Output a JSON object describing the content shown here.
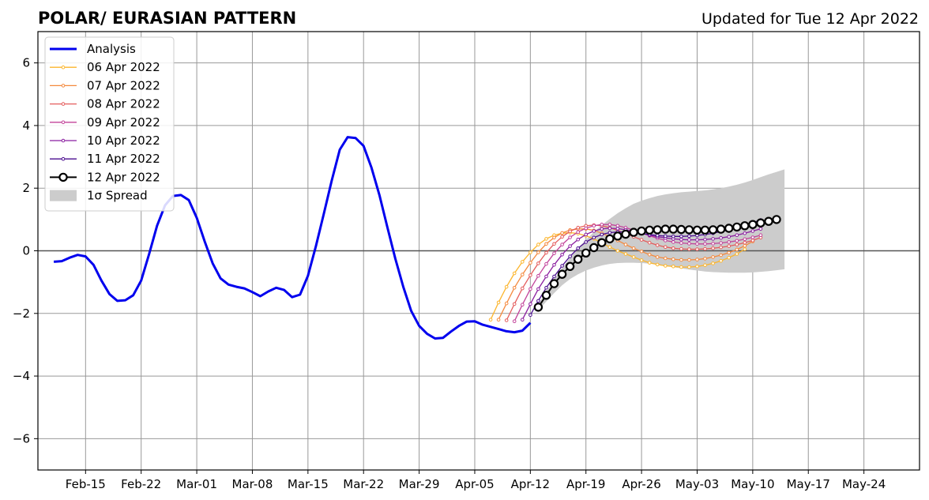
{
  "chart_data": {
    "type": "line",
    "title": "POLAR/ EURASIAN  PATTERN",
    "subtitle": "Updated for Tue 12 Apr 2022",
    "xlabel": "",
    "ylabel": "",
    "xlim": [
      "2022-02-09",
      "2022-05-31"
    ],
    "ylim": [
      -7,
      7
    ],
    "x_tick_labels": [
      "Feb-15",
      "Feb-22",
      "Mar-01",
      "Mar-08",
      "Mar-15",
      "Mar-22",
      "Mar-29",
      "Apr-05",
      "Apr-12",
      "Apr-19",
      "Apr-26",
      "May-03",
      "May-10",
      "May-17",
      "May-24"
    ],
    "x_tick_dates": [
      "2022-02-15",
      "2022-02-22",
      "2022-03-01",
      "2022-03-08",
      "2022-03-15",
      "2022-03-22",
      "2022-03-29",
      "2022-04-05",
      "2022-04-12",
      "2022-04-19",
      "2022-04-26",
      "2022-05-03",
      "2022-05-10",
      "2022-05-17",
      "2022-05-24"
    ],
    "y_ticks": [
      -6,
      -4,
      -2,
      0,
      2,
      4,
      6
    ],
    "y_tick_labels": [
      "−6",
      "−4",
      "−2",
      "0",
      "2",
      "4",
      "6"
    ],
    "grid": true,
    "legend_position": "top-left",
    "series": [
      {
        "name": "Analysis",
        "color": "#0000ee",
        "start": "2022-02-11",
        "values": [
          -0.35,
          -0.33,
          -0.22,
          -0.13,
          -0.18,
          -0.45,
          -0.95,
          -1.38,
          -1.6,
          -1.58,
          -1.42,
          -0.95,
          -0.1,
          0.8,
          1.45,
          1.75,
          1.78,
          1.62,
          1.05,
          0.3,
          -0.4,
          -0.88,
          -1.08,
          -1.15,
          -1.2,
          -1.32,
          -1.45,
          -1.3,
          -1.18,
          -1.25,
          -1.48,
          -1.4,
          -0.8,
          0.15,
          1.18,
          2.25,
          3.23,
          3.63,
          3.6,
          3.35,
          2.65,
          1.78,
          0.75,
          -0.25,
          -1.15,
          -1.92,
          -2.4,
          -2.65,
          -2.8,
          -2.78,
          -2.58,
          -2.4,
          -2.26,
          -2.25,
          -2.36,
          -2.43,
          -2.5,
          -2.57,
          -2.6,
          -2.55,
          -2.3
        ]
      },
      {
        "name": "06 Apr 2022",
        "color": "#fcb52b",
        "start": "2022-04-07",
        "values": [
          -2.2,
          -1.65,
          -1.15,
          -0.72,
          -0.35,
          -0.05,
          0.2,
          0.38,
          0.5,
          0.56,
          0.58,
          0.55,
          0.48,
          0.38,
          0.25,
          0.12,
          0.0,
          -0.1,
          -0.2,
          -0.3,
          -0.38,
          -0.44,
          -0.48,
          -0.5,
          -0.52,
          -0.52,
          -0.5,
          -0.46,
          -0.4,
          -0.32,
          -0.22,
          -0.1,
          0.05
        ]
      },
      {
        "name": "07 Apr 2022",
        "color": "#f4893d",
        "start": "2022-04-08",
        "values": [
          -2.2,
          -1.68,
          -1.18,
          -0.76,
          -0.38,
          -0.05,
          0.22,
          0.42,
          0.57,
          0.66,
          0.7,
          0.7,
          0.65,
          0.56,
          0.45,
          0.33,
          0.2,
          0.08,
          -0.02,
          -0.12,
          -0.2,
          -0.24,
          -0.27,
          -0.29,
          -0.29,
          -0.28,
          -0.25,
          -0.2,
          -0.14,
          -0.06,
          0.04,
          0.16,
          0.3
        ]
      },
      {
        "name": "08 Apr 2022",
        "color": "#e45c5c",
        "start": "2022-04-09",
        "values": [
          -2.22,
          -1.7,
          -1.2,
          -0.78,
          -0.4,
          -0.06,
          0.22,
          0.45,
          0.62,
          0.74,
          0.8,
          0.82,
          0.8,
          0.74,
          0.65,
          0.55,
          0.45,
          0.35,
          0.26,
          0.18,
          0.12,
          0.08,
          0.06,
          0.05,
          0.05,
          0.06,
          0.08,
          0.11,
          0.15,
          0.2,
          0.26,
          0.33,
          0.42
        ]
      },
      {
        "name": "09 Apr 2022",
        "color": "#c2439a",
        "start": "2022-04-10",
        "values": [
          -2.25,
          -1.72,
          -1.22,
          -0.8,
          -0.42,
          -0.08,
          0.2,
          0.43,
          0.6,
          0.72,
          0.8,
          0.84,
          0.84,
          0.8,
          0.74,
          0.66,
          0.57,
          0.48,
          0.4,
          0.33,
          0.28,
          0.25,
          0.23,
          0.22,
          0.22,
          0.23,
          0.25,
          0.28,
          0.32,
          0.37,
          0.43,
          0.5
        ]
      },
      {
        "name": "10 Apr 2022",
        "color": "#8b1fa0",
        "start": "2022-04-11",
        "values": [
          -2.2,
          -1.7,
          -1.22,
          -0.82,
          -0.45,
          -0.12,
          0.15,
          0.36,
          0.52,
          0.63,
          0.7,
          0.72,
          0.71,
          0.67,
          0.62,
          0.56,
          0.5,
          0.45,
          0.41,
          0.38,
          0.36,
          0.35,
          0.35,
          0.36,
          0.38,
          0.41,
          0.45,
          0.5,
          0.56,
          0.63,
          0.7
        ]
      },
      {
        "name": "11 Apr 2022",
        "color": "#4a0c8f",
        "start": "2022-04-12",
        "values": [
          -2.05,
          -1.6,
          -1.18,
          -0.82,
          -0.48,
          -0.18,
          0.08,
          0.28,
          0.42,
          0.52,
          0.58,
          0.6,
          0.6,
          0.58,
          0.55,
          0.52,
          0.49,
          0.47,
          0.46,
          0.46,
          0.47,
          0.49,
          0.52,
          0.56,
          0.61,
          0.67,
          0.74,
          0.82,
          0.9,
          0.98
        ]
      },
      {
        "name": "12 Apr 2022",
        "color": "#000000",
        "start": "2022-04-13",
        "values": [
          -1.8,
          -1.42,
          -1.05,
          -0.75,
          -0.5,
          -0.27,
          -0.07,
          0.1,
          0.26,
          0.38,
          0.47,
          0.53,
          0.59,
          0.63,
          0.66,
          0.67,
          0.69,
          0.69,
          0.68,
          0.67,
          0.66,
          0.66,
          0.67,
          0.69,
          0.72,
          0.76,
          0.8,
          0.84,
          0.89,
          0.94,
          1.0
        ]
      }
    ],
    "spread": {
      "name": "1σ Spread",
      "color": "#cccccc",
      "start": "2022-04-13",
      "upper": [
        -1.7,
        -1.3,
        -0.9,
        -0.55,
        -0.22,
        0.08,
        0.35,
        0.6,
        0.82,
        1.02,
        1.2,
        1.36,
        1.5,
        1.6,
        1.68,
        1.75,
        1.8,
        1.84,
        1.87,
        1.89,
        1.91,
        1.93,
        1.96,
        2.0,
        2.05,
        2.11,
        2.18,
        2.26,
        2.35,
        2.44,
        2.52,
        2.6
      ],
      "lower": [
        -1.9,
        -1.62,
        -1.35,
        -1.1,
        -0.9,
        -0.75,
        -0.63,
        -0.54,
        -0.47,
        -0.42,
        -0.39,
        -0.38,
        -0.38,
        -0.39,
        -0.41,
        -0.44,
        -0.48,
        -0.52,
        -0.56,
        -0.6,
        -0.63,
        -0.66,
        -0.68,
        -0.69,
        -0.7,
        -0.7,
        -0.7,
        -0.69,
        -0.67,
        -0.65,
        -0.62,
        -0.59
      ]
    }
  }
}
